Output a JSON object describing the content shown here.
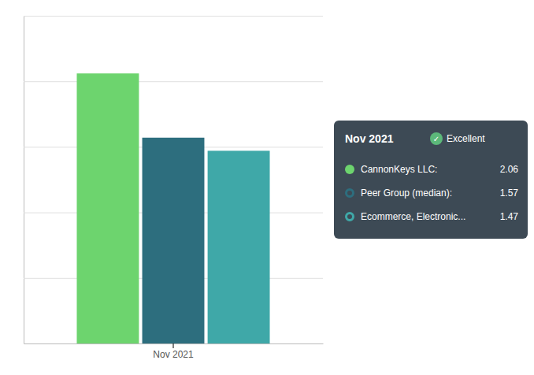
{
  "chart_data": {
    "type": "bar",
    "categories": [
      "Nov 2021"
    ],
    "series": [
      {
        "name": "CannonKeys LLC:",
        "color": "#6dd46e",
        "marker": "circle",
        "values": [
          2.06
        ]
      },
      {
        "name": "Peer Group (median):",
        "color": "#2d6e7e",
        "marker": "ring",
        "values": [
          1.57
        ]
      },
      {
        "name": "Ecommerce, Electronic...",
        "color": "#3fa8a8",
        "marker": "ring",
        "values": [
          1.47
        ]
      }
    ],
    "ylim": [
      0,
      2.5
    ],
    "yticks": [
      0,
      0.5,
      1,
      1.5,
      2,
      2.5
    ],
    "grid": true,
    "tick_labels": "x",
    "annotations": [
      "Nov 2021",
      "✓",
      "Excellent"
    ]
  }
}
